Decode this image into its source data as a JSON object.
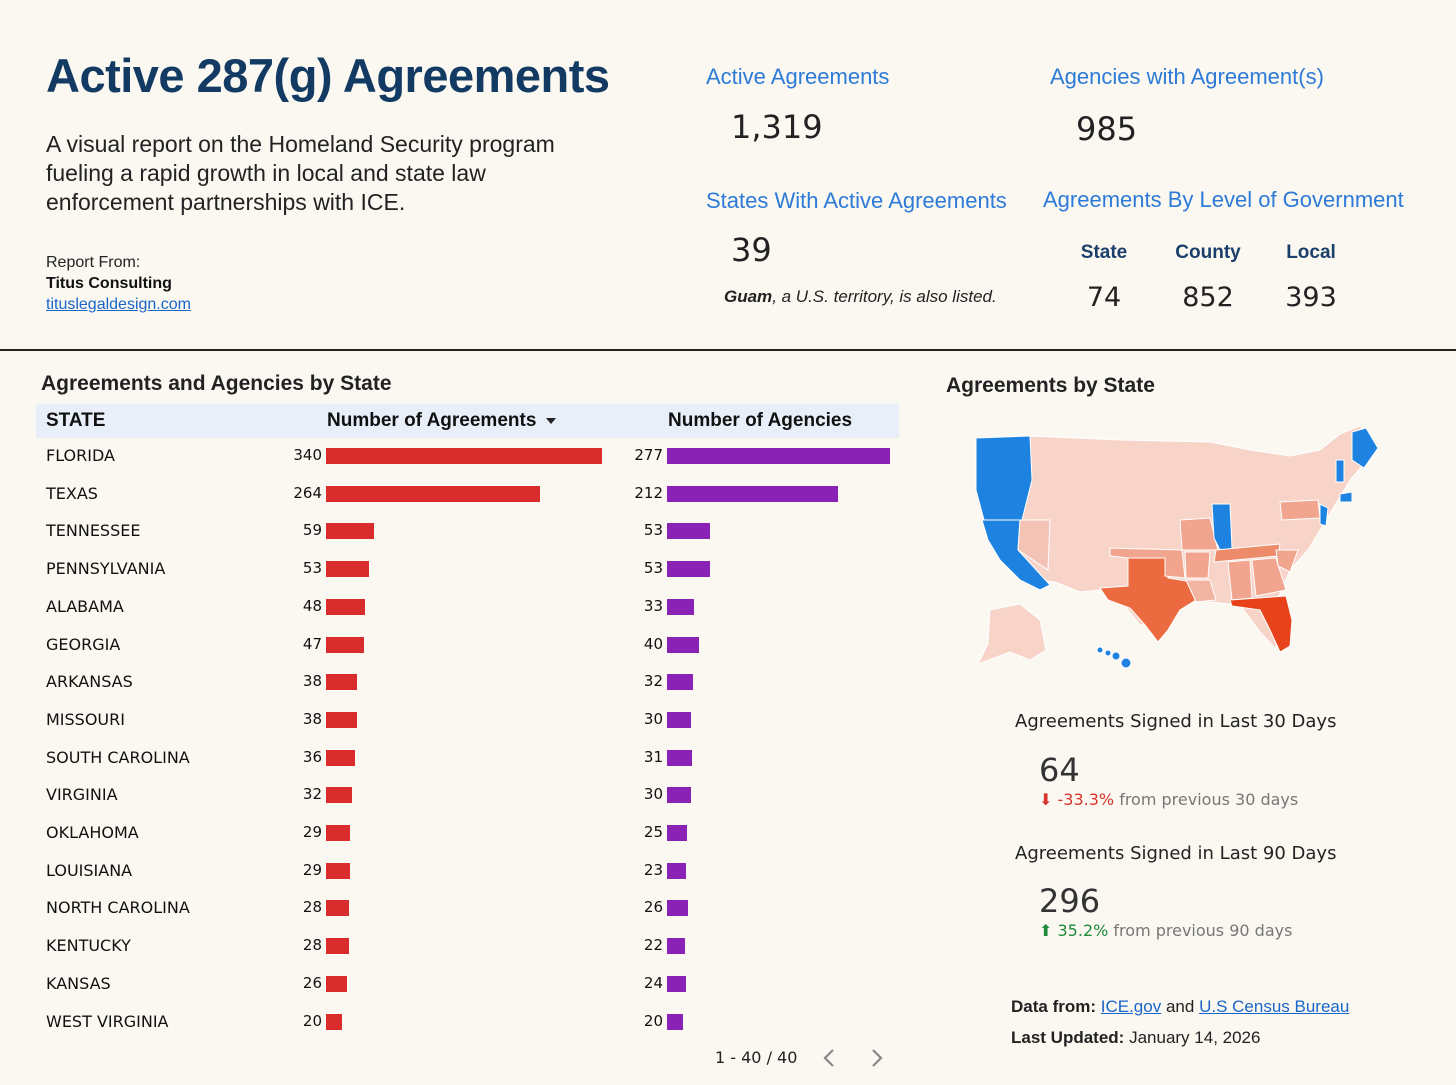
{
  "header": {
    "title": "Active 287(g) Agreements",
    "subtitle": "A visual report on the Homeland Security program fueling a rapid growth in local and state law enforcement partnerships with ICE.",
    "report_from_label": "Report From:",
    "report_org": "Titus Consulting",
    "report_site": "tituslegaldesign.com"
  },
  "kpis": {
    "active_agreements": {
      "label": "Active Agreements",
      "value": "1,319"
    },
    "agencies_with_agreements": {
      "label": "Agencies with Agreement(s)",
      "value": "985"
    },
    "states_active": {
      "label": "States With Active Agreements",
      "value": "39"
    },
    "guam_note_bold": "Guam",
    "guam_note_rest": ", a U.S. territory, is also listed.",
    "by_level": {
      "label": "Agreements By Level of Government",
      "levels": [
        {
          "name": "State",
          "value": "74"
        },
        {
          "name": "County",
          "value": "852"
        },
        {
          "name": "Local",
          "value": "393"
        }
      ]
    }
  },
  "table": {
    "title": "Agreements and Agencies by State",
    "columns": {
      "state": "STATE",
      "agreements": "Number of Agreements",
      "agencies": "Number of Agencies"
    },
    "pagination": "1 - 40 / 40"
  },
  "chart_data": {
    "type": "bar",
    "title": "Agreements and Agencies by State",
    "categories": [
      "FLORIDA",
      "TEXAS",
      "TENNESSEE",
      "PENNSYLVANIA",
      "ALABAMA",
      "GEORGIA",
      "ARKANSAS",
      "MISSOURI",
      "SOUTH CAROLINA",
      "VIRGINIA",
      "OKLAHOMA",
      "LOUISIANA",
      "NORTH CAROLINA",
      "KENTUCKY",
      "KANSAS",
      "WEST VIRGINIA"
    ],
    "series": [
      {
        "name": "Number of Agreements",
        "color": "#d92c2c",
        "values": [
          340,
          264,
          59,
          53,
          48,
          47,
          38,
          38,
          36,
          32,
          29,
          29,
          28,
          28,
          26,
          20
        ]
      },
      {
        "name": "Number of Agencies",
        "color": "#8a23b5",
        "values": [
          277,
          212,
          53,
          53,
          33,
          40,
          32,
          30,
          31,
          30,
          25,
          23,
          26,
          22,
          24,
          20
        ]
      }
    ],
    "sort": "Number of Agreements descending"
  },
  "map": {
    "title": "Agreements by State",
    "colors": {
      "low": "#f7d3c8",
      "mid": "#f1a58f",
      "high": "#ec6a40",
      "top": "#e8421a",
      "none": "#1e82e0",
      "border": "#ffffff"
    }
  },
  "stats": {
    "last30": {
      "label": "Agreements Signed in Last 30 Days",
      "value": "64",
      "delta": "-33.3%",
      "delta_suffix": " from previous 30 days",
      "direction": "down"
    },
    "last90": {
      "label": "Agreements Signed in Last 90 Days",
      "value": "296",
      "delta": "35.2%",
      "delta_suffix": " from previous 90 days",
      "direction": "up"
    }
  },
  "footer": {
    "data_from_label": "Data from:",
    "source1": "ICE.gov",
    "and": "and",
    "source2": "U.S Census Bureau",
    "updated_label": "Last Updated:",
    "updated_value": "January 14, 2026"
  }
}
